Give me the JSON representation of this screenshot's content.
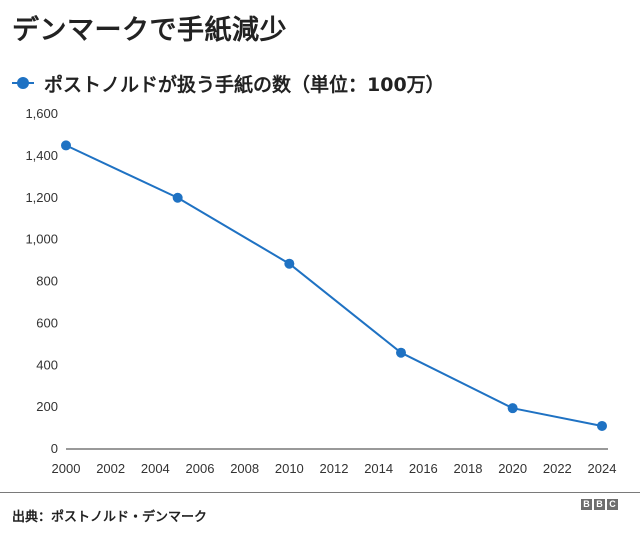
{
  "title": "デンマークで手紙減少",
  "legend": {
    "label": "ポストノルドが扱う手紙の数（単位：100万）",
    "color": "#1f72c3"
  },
  "chart_data": {
    "type": "line",
    "title": "デンマークで手紙減少",
    "xlabel": "",
    "ylabel": "",
    "xlim": [
      2000,
      2024
    ],
    "ylim": [
      0,
      1600
    ],
    "x_ticks": [
      2000,
      2002,
      2004,
      2006,
      2008,
      2010,
      2012,
      2014,
      2016,
      2018,
      2020,
      2022,
      2024
    ],
    "y_ticks": [
      0,
      200,
      400,
      600,
      800,
      1000,
      1200,
      1400,
      1600
    ],
    "y_tick_labels": [
      "0",
      "200",
      "400",
      "600",
      "800",
      "1,000",
      "1,200",
      "1,400",
      "1,600"
    ],
    "grid": false,
    "legend_position": "top-left",
    "series": [
      {
        "name": "ポストノルドが扱う手紙の数（単位：100万）",
        "color": "#1f72c3",
        "x": [
          2000,
          2005,
          2010,
          2015,
          2020,
          2024
        ],
        "y": [
          1450,
          1200,
          885,
          460,
          195,
          110
        ]
      }
    ]
  },
  "footer": {
    "source": "出典：ポストノルド・デンマーク",
    "logo": [
      "B",
      "B",
      "C"
    ]
  }
}
